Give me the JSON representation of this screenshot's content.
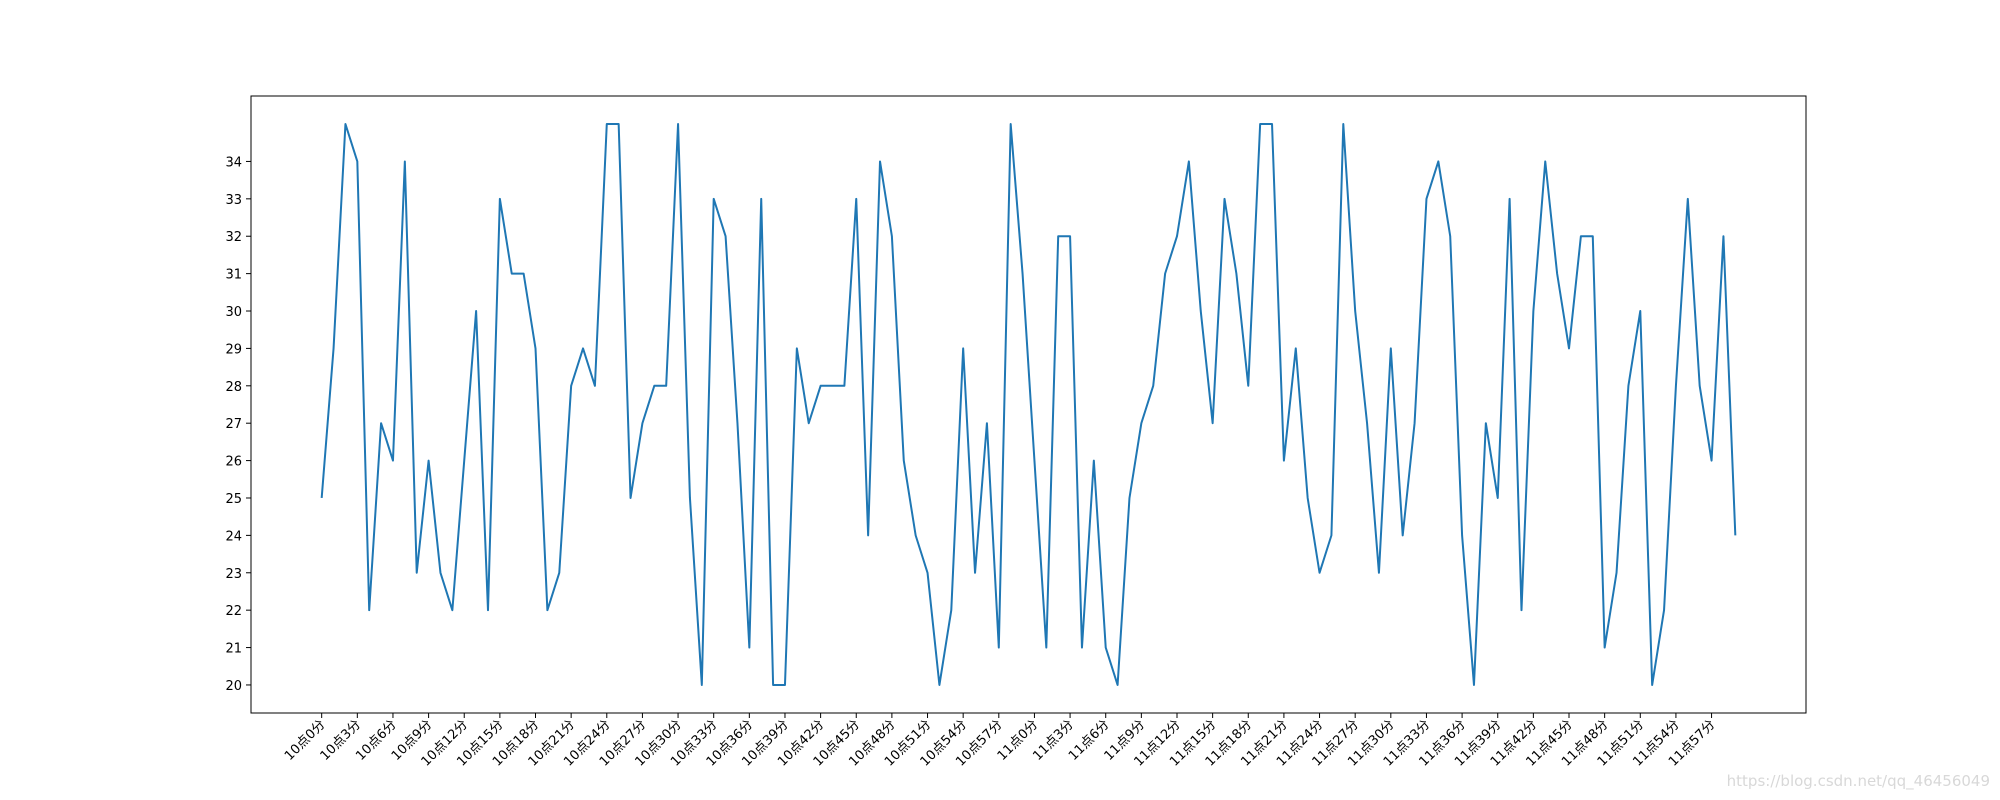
{
  "chart_data": {
    "type": "line",
    "categories": [
      "10点0分",
      null,
      null,
      "10点3分",
      null,
      null,
      "10点6分",
      null,
      null,
      "10点9分",
      null,
      null,
      "10点12分",
      null,
      null,
      "10点15分",
      null,
      null,
      "10点18分",
      null,
      null,
      "10点21分",
      null,
      null,
      "10点24分",
      null,
      null,
      "10点27分",
      null,
      null,
      "10点30分",
      null,
      null,
      "10点33分",
      null,
      null,
      "10点36分",
      null,
      null,
      "10点39分",
      null,
      null,
      "10点42分",
      null,
      null,
      "10点45分",
      null,
      null,
      "10点48分",
      null,
      null,
      "10点51分",
      null,
      null,
      "10点54分",
      null,
      null,
      "10点57分",
      null,
      null,
      "11点0分",
      null,
      null,
      "11点3分",
      null,
      null,
      "11点6分",
      null,
      null,
      "11点9分",
      null,
      null,
      "11点12分",
      null,
      null,
      "11点15分",
      null,
      null,
      "11点18分",
      null,
      null,
      "11点21分",
      null,
      null,
      "11点24分",
      null,
      null,
      "11点27分",
      null,
      null,
      "11点30分",
      null,
      null,
      "11点33分",
      null,
      null,
      "11点36分",
      null,
      null,
      "11点39分",
      null,
      null,
      "11点42分",
      null,
      null,
      "11点45分",
      null,
      null,
      "11点48分",
      null,
      null,
      "11点51分",
      null,
      null,
      "11点54分",
      null,
      null,
      "11点57分",
      null,
      null
    ],
    "values": [
      25,
      29,
      35,
      34,
      22,
      27,
      26,
      34,
      23,
      26,
      23,
      22,
      26,
      30,
      22,
      33,
      31,
      31,
      29,
      22,
      23,
      28,
      29,
      28,
      35,
      35,
      25,
      27,
      28,
      28,
      35,
      25,
      20,
      33,
      32,
      27,
      21,
      33,
      20,
      20,
      29,
      27,
      28,
      28,
      28,
      33,
      24,
      34,
      32,
      26,
      24,
      23,
      20,
      22,
      29,
      23,
      27,
      21,
      35,
      31,
      26,
      21,
      32,
      32,
      21,
      26,
      21,
      20,
      25,
      27,
      28,
      31,
      32,
      34,
      30,
      27,
      33,
      31,
      28,
      35,
      35,
      26,
      29,
      25,
      23,
      24,
      35,
      30,
      27,
      23,
      29,
      24,
      27,
      33,
      34,
      32,
      24,
      20,
      27,
      25,
      33,
      22,
      30,
      34,
      31,
      29,
      32,
      32,
      21,
      23,
      28,
      30,
      20,
      22,
      28,
      33,
      28,
      26,
      32,
      24
    ],
    "color": "#1f77b4",
    "ylim": [
      19.25,
      35.75
    ],
    "yticks": [
      20,
      21,
      22,
      23,
      24,
      25,
      26,
      27,
      28,
      29,
      30,
      31,
      32,
      33,
      34
    ]
  },
  "watermark": "https://blog.csdn.net/qq_46456049"
}
